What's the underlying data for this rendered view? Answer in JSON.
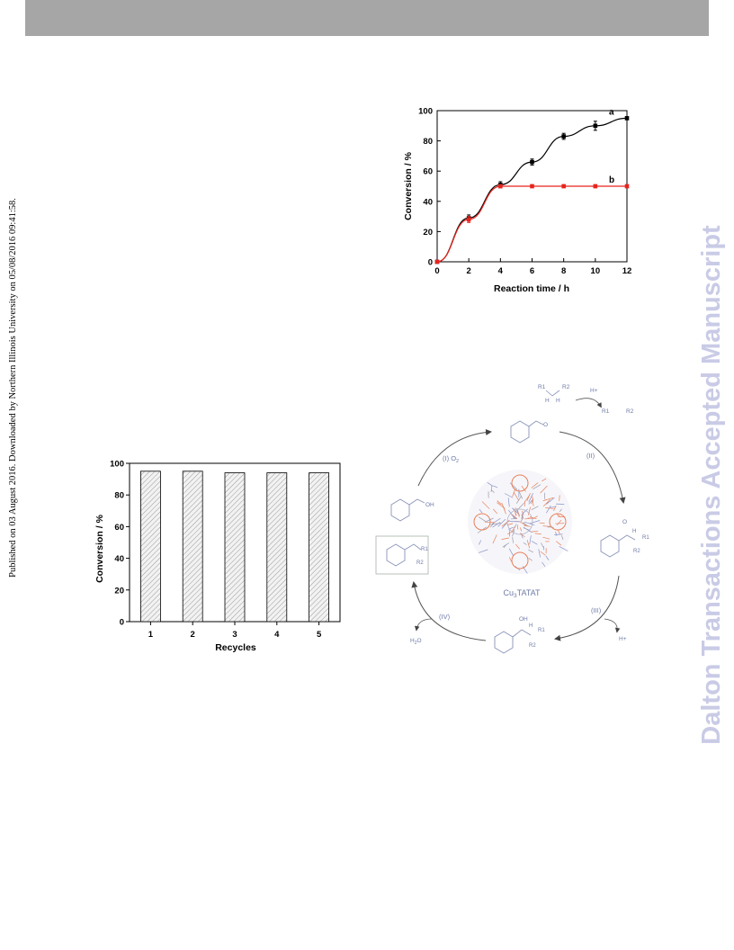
{
  "page": {
    "published_note": "Published on 03 August 2016. Downloaded by Northern Illinois University on 05/08/2016 09:41:58.",
    "watermark": "Dalton Transactions Accepted Manuscript"
  },
  "chart_data": [
    {
      "type": "line",
      "xlabel": "Reaction time / h",
      "ylabel": "Conversion / %",
      "xlim": [
        0,
        12
      ],
      "ylim": [
        0,
        100
      ],
      "x_ticks": [
        "0",
        "2",
        "4",
        "6",
        "8",
        "10",
        "12"
      ],
      "y_ticks": [
        "0",
        "20",
        "40",
        "60",
        "80",
        "100"
      ],
      "grid": false,
      "series": [
        {
          "name": "a",
          "color": "#000000",
          "x": [
            0,
            2,
            4,
            6,
            8,
            10,
            12
          ],
          "values": [
            0,
            29,
            51,
            66,
            83,
            90,
            95
          ],
          "errors": [
            0,
            2,
            2,
            2,
            2,
            3,
            1
          ]
        },
        {
          "name": "b",
          "color": "#e8231d",
          "x": [
            0,
            2,
            4,
            6,
            8,
            10,
            12
          ],
          "values": [
            0,
            28,
            50,
            50,
            50,
            50,
            50
          ],
          "errors": [
            0,
            2,
            1,
            1,
            1,
            1,
            1
          ]
        }
      ]
    },
    {
      "type": "bar",
      "xlabel": "Recycles",
      "ylabel": "Conversion / %",
      "categories": [
        "1",
        "2",
        "3",
        "4",
        "5"
      ],
      "values": [
        95,
        95,
        94,
        94,
        94
      ],
      "ylim": [
        0,
        100
      ],
      "y_ticks": [
        "0",
        "20",
        "40",
        "60",
        "80",
        "100"
      ],
      "grid": false,
      "bar_fill": "hatched grey"
    }
  ],
  "scheme": {
    "catalyst_label": "Cu3TATAT",
    "catalyst_base": "Cu",
    "catalyst_sub": "3",
    "catalyst_rest": "TATAT",
    "steps": [
      "(I) O2",
      "(II)",
      "(III)",
      "(IV)"
    ],
    "step_i_num": "(I)",
    "step_i_o": "O",
    "step_i_sub": "2",
    "reagent_top": {
      "r1": "R1",
      "r2": "R2",
      "h1": "H",
      "h2": "H"
    },
    "hplus_1": "H+",
    "hplus_2": "H+",
    "h2o_base": "H",
    "h2o_sub": "2",
    "h2o_o": "O",
    "oh_1": "OH",
    "oh_2": "OH",
    "o_label": "O",
    "h_label": "H",
    "r1_label": "R1",
    "r2_label": "R2"
  }
}
